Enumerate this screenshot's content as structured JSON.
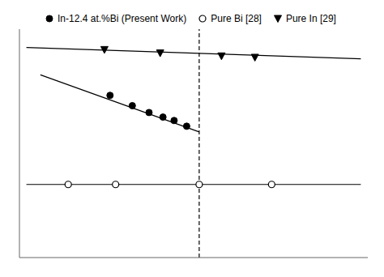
{
  "chart_data": {
    "type": "line",
    "xlim": [
      -1.25,
      11.25
    ],
    "xticks": [
      -1.25,
      0,
      1.25,
      2.5,
      3.75,
      5,
      6.25,
      7.5,
      8.75,
      10,
      11.25
    ],
    "ylim": [
      0,
      10
    ],
    "yticks": [
      0,
      1.6666666666666667,
      3.3333333333333335,
      5,
      6.666666666666667,
      8.333333333333334,
      10
    ],
    "tick_labels": false,
    "grid": false,
    "legend": "top",
    "series": [
      {
        "name": "In-12.4 at.%Bi (Present Work)",
        "type": "scatter",
        "marker": "circle",
        "color": "#000000",
        "x": [
          2.0,
          2.8,
          3.4,
          3.9,
          4.3,
          4.75
        ],
        "values": [
          7.1,
          6.65,
          6.35,
          6.15,
          6.0,
          5.75
        ]
      },
      {
        "name": "Pure Bi [28]",
        "type": "scatter",
        "marker": "circle-open",
        "color": "#000000",
        "x": [
          0.5,
          2.2,
          5.2,
          7.8
        ],
        "values": [
          3.2,
          3.2,
          3.2,
          3.2
        ]
      },
      {
        "name": "Pure In [29]",
        "type": "scatter",
        "marker": "triangle-down",
        "color": "#000000",
        "x": [
          1.8,
          3.8,
          6.0,
          7.2
        ],
        "values": [
          9.1,
          8.95,
          8.82,
          8.76
        ]
      },
      {
        "type": "line",
        "marker": "none",
        "line_style": "solid",
        "color": "#000000",
        "x": [
          -1,
          11
        ],
        "values": [
          9.2,
          8.7
        ]
      },
      {
        "type": "line",
        "marker": "none",
        "line_style": "solid",
        "color": "#000000",
        "x": [
          -0.5,
          5.2
        ],
        "values": [
          8.0,
          5.5
        ]
      },
      {
        "type": "line",
        "marker": "none",
        "line_style": "solid",
        "color": "#000000",
        "x": [
          -1,
          11
        ],
        "values": [
          3.2,
          3.2
        ]
      },
      {
        "type": "line",
        "marker": "none",
        "line_style": "dashed",
        "color": "#000000",
        "x": [
          5.2,
          5.2
        ],
        "values": [
          0,
          10
        ]
      }
    ]
  }
}
